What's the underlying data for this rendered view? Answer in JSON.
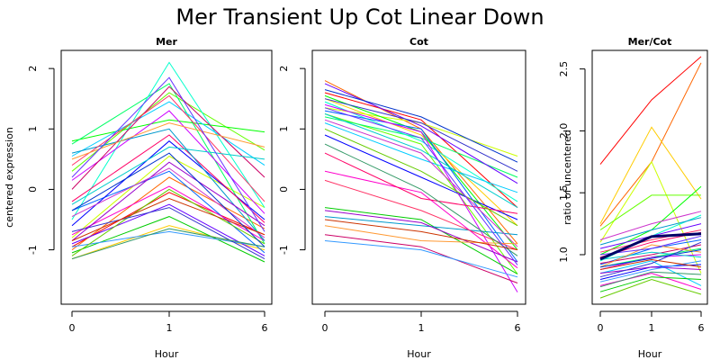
{
  "title": "Mer Transient Up Cot Linear Down",
  "chart_data": [
    {
      "type": "line",
      "title": "Mer",
      "xlabel": "Hour",
      "ylabel": "centered expression",
      "categories": [
        "0",
        "1",
        "6"
      ],
      "ylim": [
        -1.9,
        2.3
      ],
      "yticks": [
        "-1",
        "0",
        "1",
        "2"
      ],
      "grid": false,
      "legend": "none",
      "series": [
        {
          "values": [
            -0.95,
            -0.05,
            -0.75
          ]
        },
        {
          "values": [
            -1.0,
            0.2,
            -0.65
          ]
        },
        {
          "values": [
            -1.15,
            -0.6,
            -1.0
          ]
        },
        {
          "values": [
            -0.8,
            0.55,
            -0.3
          ]
        },
        {
          "values": [
            0.3,
            1.6,
            0.65
          ]
        },
        {
          "values": [
            0.8,
            1.15,
            0.95
          ]
        },
        {
          "values": [
            0.75,
            1.75,
            -0.9
          ]
        },
        {
          "values": [
            -0.5,
            2.1,
            -0.3
          ]
        },
        {
          "values": [
            0.55,
            1.45,
            0.4
          ]
        },
        {
          "values": [
            -0.35,
            0.3,
            -1.05
          ]
        },
        {
          "values": [
            -0.6,
            0.8,
            -0.5
          ]
        },
        {
          "values": [
            -0.9,
            -0.25,
            -1.1
          ]
        },
        {
          "values": [
            0.15,
            1.3,
            -0.4
          ]
        },
        {
          "values": [
            -0.75,
            0.05,
            -0.85
          ]
        },
        {
          "values": [
            -0.2,
            0.9,
            -0.55
          ]
        },
        {
          "values": [
            -1.05,
            -0.45,
            -1.2
          ]
        },
        {
          "values": [
            0.6,
            1.0,
            -0.85
          ]
        },
        {
          "values": [
            -0.85,
            0.45,
            -0.6
          ]
        },
        {
          "values": [
            0.0,
            1.7,
            0.2
          ]
        },
        {
          "values": [
            -0.95,
            -0.7,
            -0.95
          ]
        },
        {
          "values": [
            0.4,
            1.55,
            -0.2
          ]
        },
        {
          "values": [
            -1.1,
            0.0,
            -0.9
          ]
        },
        {
          "values": [
            -0.25,
            0.7,
            0.5
          ]
        },
        {
          "values": [
            -0.7,
            -0.3,
            -1.15
          ]
        },
        {
          "values": [
            -0.45,
            0.35,
            -0.8
          ]
        },
        {
          "values": [
            0.5,
            1.1,
            0.7
          ]
        },
        {
          "values": [
            -1.15,
            -0.65,
            -0.95
          ]
        },
        {
          "values": [
            0.2,
            1.85,
            -0.7
          ]
        },
        {
          "values": [
            -0.85,
            -0.15,
            -0.75
          ]
        },
        {
          "values": [
            -0.35,
            0.6,
            -0.95
          ]
        }
      ]
    },
    {
      "type": "line",
      "title": "Cot",
      "xlabel": "Hour",
      "ylabel": "",
      "categories": [
        "0",
        "1",
        "6"
      ],
      "ylim": [
        -1.9,
        2.3
      ],
      "yticks": [
        "-1",
        "0",
        "1",
        "2"
      ],
      "grid": false,
      "legend": "none",
      "series": [
        {
          "values": [
            1.6,
            1.15,
            -0.3
          ]
        },
        {
          "values": [
            1.8,
            1.0,
            -0.9
          ]
        },
        {
          "values": [
            1.5,
            0.9,
            -0.6
          ]
        },
        {
          "values": [
            1.35,
            1.1,
            0.55
          ]
        },
        {
          "values": [
            1.25,
            0.75,
            -1.4
          ]
        },
        {
          "values": [
            1.55,
            0.95,
            -1.0
          ]
        },
        {
          "values": [
            1.2,
            0.85,
            0.2
          ]
        },
        {
          "values": [
            1.45,
            0.8,
            -0.2
          ]
        },
        {
          "values": [
            1.1,
            0.5,
            -0.05
          ]
        },
        {
          "values": [
            1.3,
            1.0,
            -1.2
          ]
        },
        {
          "values": [
            0.9,
            0.2,
            -0.5
          ]
        },
        {
          "values": [
            1.75,
            1.05,
            0.1
          ]
        },
        {
          "values": [
            1.4,
            0.95,
            -1.7
          ]
        },
        {
          "values": [
            0.3,
            -0.05,
            -1.3
          ]
        },
        {
          "values": [
            0.6,
            -0.15,
            -0.4
          ]
        },
        {
          "values": [
            -0.3,
            -0.5,
            -1.4
          ]
        },
        {
          "values": [
            -0.45,
            -0.6,
            -0.75
          ]
        },
        {
          "values": [
            -0.35,
            -0.55,
            -1.2
          ]
        },
        {
          "values": [
            -0.75,
            -0.95,
            -1.55
          ]
        },
        {
          "values": [
            -0.85,
            -1.0,
            -1.45
          ]
        },
        {
          "values": [
            0.15,
            -0.35,
            -1.0
          ]
        },
        {
          "values": [
            1.0,
            0.3,
            -0.6
          ]
        },
        {
          "values": [
            1.25,
            0.65,
            -0.3
          ]
        },
        {
          "values": [
            1.5,
            1.1,
            0.3
          ]
        },
        {
          "values": [
            1.15,
            0.6,
            -0.95
          ]
        },
        {
          "values": [
            -0.6,
            -0.85,
            -0.9
          ]
        },
        {
          "values": [
            0.75,
            0.0,
            -1.1
          ]
        },
        {
          "values": [
            1.35,
            0.85,
            -1.25
          ]
        },
        {
          "values": [
            -0.5,
            -0.7,
            -1.0
          ]
        },
        {
          "values": [
            1.65,
            1.2,
            0.45
          ]
        }
      ]
    },
    {
      "type": "line",
      "title": "Mer/Cot",
      "xlabel": "Hour",
      "ylabel": "ratio of uncentered",
      "categories": [
        "0",
        "1",
        "6"
      ],
      "ylim": [
        0.6,
        2.65
      ],
      "yticks": [
        "1.0",
        "1.5",
        "2.0",
        "2.5"
      ],
      "grid": false,
      "legend": "none",
      "series": [
        {
          "values": [
            1.73,
            2.25,
            2.6
          ]
        },
        {
          "values": [
            1.23,
            1.75,
            2.55
          ]
        },
        {
          "values": [
            1.25,
            2.03,
            1.45
          ]
        },
        {
          "values": [
            1.1,
            1.75,
            0.85
          ]
        },
        {
          "values": [
            1.2,
            1.48,
            1.48
          ]
        },
        {
          "values": [
            1.0,
            1.2,
            1.55
          ]
        },
        {
          "values": [
            0.9,
            0.98,
            1.05
          ]
        },
        {
          "values": [
            0.95,
            1.15,
            1.32
          ]
        },
        {
          "values": [
            0.85,
            0.95,
            0.75
          ]
        },
        {
          "values": [
            0.92,
            1.05,
            1.12
          ]
        },
        {
          "values": [
            0.8,
            0.9,
            0.92
          ]
        },
        {
          "values": [
            1.05,
            1.15,
            1.25
          ]
        },
        {
          "values": [
            0.88,
            0.98,
            1.0
          ]
        },
        {
          "values": [
            0.75,
            0.85,
            0.72
          ]
        },
        {
          "values": [
            0.98,
            1.1,
            1.18
          ]
        },
        {
          "values": [
            0.7,
            0.82,
            0.8
          ]
        },
        {
          "values": [
            1.08,
            1.2,
            1.3
          ]
        },
        {
          "values": [
            0.85,
            0.9,
            0.88
          ]
        },
        {
          "values": [
            0.93,
            1.0,
            1.08
          ]
        },
        {
          "values": [
            0.78,
            0.88,
            0.95
          ]
        },
        {
          "values": [
            1.02,
            1.12,
            1.2
          ]
        },
        {
          "values": [
            0.65,
            0.8,
            0.68
          ]
        },
        {
          "values": [
            0.96,
            1.02,
            0.98
          ]
        },
        {
          "values": [
            0.82,
            0.93,
            1.1
          ]
        },
        {
          "values": [
            1.12,
            1.25,
            1.35
          ]
        },
        {
          "values": [
            0.9,
            1.08,
            1.02
          ]
        },
        {
          "values": [
            0.74,
            0.86,
            0.84
          ]
        },
        {
          "values": [
            1.0,
            1.05,
            1.15
          ]
        },
        {
          "values": [
            0.88,
            0.96,
            0.9
          ]
        },
        {
          "values": [
            0.9,
            0.97,
            1.04
          ]
        }
      ]
    }
  ],
  "colors": [
    "#ff0000",
    "#ff6600",
    "#ffcc00",
    "#ccff00",
    "#66ff00",
    "#00ff00",
    "#00ff66",
    "#00ffcc",
    "#00ccff",
    "#0066ff",
    "#0000ff",
    "#6600ff",
    "#cc00ff",
    "#ff00cc",
    "#ff0066",
    "#00cc00",
    "#0099cc",
    "#9900cc",
    "#cc0066",
    "#3399ff",
    "#ff3366",
    "#66cc00",
    "#00cccc",
    "#3333cc",
    "#cc33cc",
    "#ff9933",
    "#339966",
    "#6633ff",
    "#cc3300",
    "#0033cc"
  ],
  "mean_line_color": "#000066"
}
